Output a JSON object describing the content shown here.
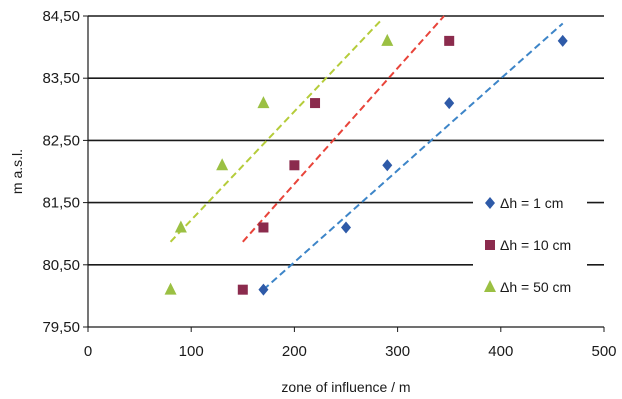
{
  "chart_data": {
    "type": "scatter",
    "xlabel": "zone of influence  / m",
    "ylabel": "m a.s.l.",
    "xlim": [
      0,
      500
    ],
    "ylim": [
      79.5,
      84.5
    ],
    "x_ticks": [
      "0",
      "100",
      "200",
      "300",
      "400",
      "500"
    ],
    "y_ticks": [
      "79,50",
      "80,50",
      "81,50",
      "82,50",
      "83,50",
      "84,50"
    ],
    "grid": "horizontal",
    "legend_position": "right",
    "series": [
      {
        "name": "Δh = 1 cm",
        "marker": "diamond",
        "color": "#2e5aa8",
        "points": [
          [
            170,
            80.1
          ],
          [
            250,
            81.1
          ],
          [
            290,
            82.1
          ],
          [
            350,
            83.1
          ],
          [
            460,
            84.1
          ]
        ],
        "trendline": {
          "color": "#3d85c8",
          "x": [
            170,
            460
          ],
          "y": [
            80.1,
            84.38
          ]
        }
      },
      {
        "name": "Δh = 10 cm",
        "marker": "square",
        "color": "#8b2b4d",
        "points": [
          [
            150,
            80.1
          ],
          [
            170,
            81.1
          ],
          [
            200,
            82.1
          ],
          [
            220,
            83.1
          ],
          [
            350,
            84.1
          ]
        ],
        "trendline": {
          "color": "#e8443a",
          "x": [
            150,
            345
          ],
          "y": [
            80.87,
            84.5
          ]
        }
      },
      {
        "name": "Δh = 50 cm",
        "marker": "triangle",
        "color": "#9bc043",
        "points": [
          [
            80,
            80.1
          ],
          [
            90,
            81.1
          ],
          [
            130,
            82.1
          ],
          [
            170,
            83.1
          ],
          [
            290,
            84.1
          ]
        ],
        "trendline": {
          "color": "#b5cc3a",
          "x": [
            80,
            285
          ],
          "y": [
            80.87,
            84.45
          ]
        }
      }
    ]
  }
}
